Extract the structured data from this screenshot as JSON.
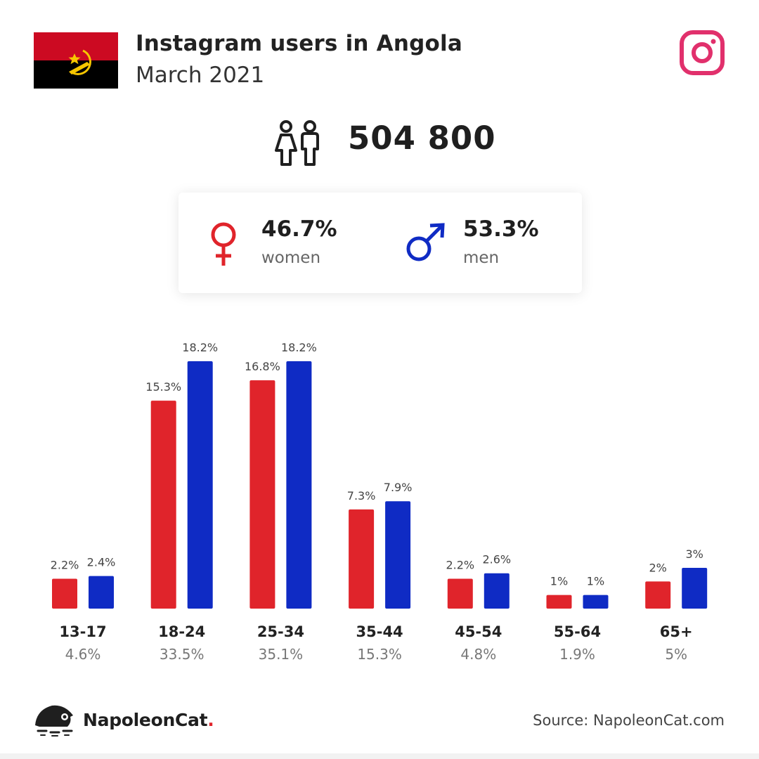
{
  "header": {
    "title": "Instagram users in Angola",
    "subtitle": "March 2021",
    "flag_icon": "angola-flag",
    "platform_icon": "instagram-icon"
  },
  "total": {
    "value": "504 800",
    "icon": "users-icon"
  },
  "gender": {
    "women": {
      "value": "46.7%",
      "label": "women",
      "icon": "female-symbol-icon"
    },
    "men": {
      "value": "53.3%",
      "label": "men",
      "icon": "male-symbol-icon"
    }
  },
  "colors": {
    "women": "#e0242b",
    "men": "#0f2bc4",
    "instagram": "#e1306c",
    "flag_red": "#cc0a22",
    "flag_black": "#000000",
    "flag_emblem": "#f7c600"
  },
  "chart_data": {
    "type": "bar",
    "categories": [
      "13-17",
      "18-24",
      "25-34",
      "35-44",
      "45-54",
      "55-64",
      "65+"
    ],
    "category_totals": [
      "4.6%",
      "33.5%",
      "35.1%",
      "15.3%",
      "4.8%",
      "1.9%",
      "5%"
    ],
    "series": [
      {
        "values": [
          2.2,
          15.3,
          16.8,
          7.3,
          2.2,
          1,
          2
        ],
        "labels": [
          "2.2%",
          "15.3%",
          "16.8%",
          "7.3%",
          "2.2%",
          "1%",
          "2%"
        ],
        "color": "#e0242b"
      },
      {
        "values": [
          2.4,
          18.2,
          18.2,
          7.9,
          2.6,
          1,
          3
        ],
        "labels": [
          "2.4%",
          "18.2%",
          "18.2%",
          "7.9%",
          "2.6%",
          "1%",
          "3%"
        ],
        "color": "#0f2bc4"
      }
    ],
    "ylim": [
      0,
      18.2
    ],
    "grid": false
  },
  "footer": {
    "brand": "NapoleonCat",
    "brand_dot": ".",
    "source": "Source: NapoleonCat.com"
  }
}
